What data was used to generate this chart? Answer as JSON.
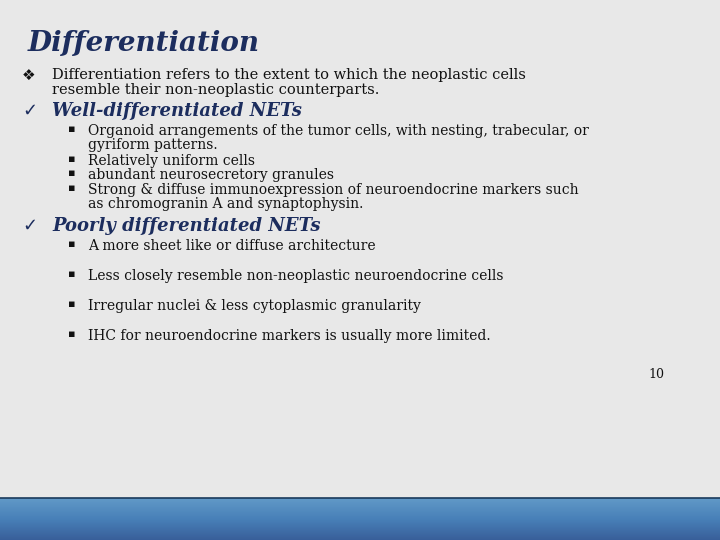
{
  "title": "Differentiation",
  "title_color": "#1C2D5E",
  "background_color": "#E8E8E8",
  "body_font": "DejaVu Serif",
  "bullet1_text_line1": "Differentiation refers to the extent to which the neoplastic cells",
  "bullet1_text_line2": "resemble their non-neoplastic counterparts.",
  "check1_text": "Well-differentiated NETs",
  "check2_text": "Poorly differentiated NETs",
  "sub_bullets_well": [
    "Organoid arrangements of the tumor cells, with nesting, trabecular, or\n    gyriform patterns.",
    "Relatively uniform cells",
    "abundant neurosecretory granules",
    "Strong & diffuse immunoexpression of neuroendocrine markers such\n    as chromogranin A and synaptophysin."
  ],
  "sub_bullets_poorly": [
    "A more sheet like or diffuse architecture",
    "Less closely resemble non-neoplastic neuroendocrine cells",
    "Irregular nuclei & less cytoplasmic granularity",
    "IHC for neuroendocrine markers is usually more limited."
  ],
  "page_number": "10",
  "text_color": "#111111",
  "check_color": "#1C2D5E",
  "title_fontsize": 20,
  "body_fontsize": 10.5,
  "check_fontsize": 13
}
